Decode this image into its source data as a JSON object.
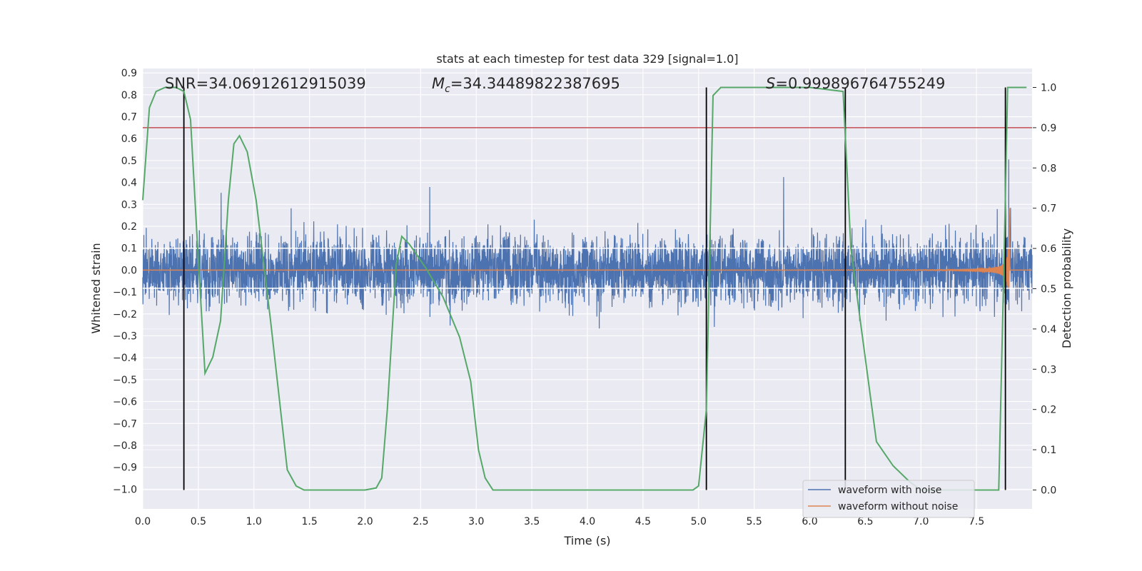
{
  "chart_data": {
    "type": "line",
    "title": "stats at each timestep for test data 329 [signal=1.0]",
    "xlabel": "Time (s)",
    "ylabel": "Whitened strain",
    "y2label": "Detection probability",
    "xlim": [
      0.0,
      8.0
    ],
    "ylim": [
      -1.09,
      0.92
    ],
    "y2lim": [
      -0.047,
      1.047
    ],
    "grid": true,
    "x_ticks": [
      "0.0",
      "0.5",
      "1.0",
      "1.5",
      "2.0",
      "2.5",
      "3.0",
      "3.5",
      "4.0",
      "4.5",
      "5.0",
      "5.5",
      "6.0",
      "6.5",
      "7.0",
      "7.5"
    ],
    "y_ticks": [
      "0.9",
      "0.8",
      "0.7",
      "0.6",
      "0.5",
      "0.4",
      "0.3",
      "0.2",
      "0.1",
      "0.0",
      "−0.1",
      "−0.2",
      "−0.3",
      "−0.4",
      "−0.5",
      "−0.6",
      "−0.7",
      "−0.8",
      "−0.9",
      "−1.0"
    ],
    "y2_ticks": [
      "1.0",
      "0.9",
      "0.8",
      "0.7",
      "0.6",
      "0.5",
      "0.4",
      "0.3",
      "0.2",
      "0.1",
      "0.0"
    ],
    "annotations": {
      "snr": "SNR=34.06912612915039",
      "mc_symbol": "M",
      "mc_sub": "c",
      "mc_value": "=34.34489822387695",
      "s_symbol": "S",
      "s_value": "=0.999896764755249"
    },
    "threshold": 0.9,
    "vertical_lines_x": [
      0.37,
      5.07,
      6.32,
      7.76
    ],
    "noise_band": {
      "upper": 0.1,
      "lower": -0.083
    },
    "series": [
      {
        "name": "waveform with noise",
        "color": "#4c72b0"
      },
      {
        "name": "waveform without noise",
        "color": "#dd8452"
      },
      {
        "color": "#55a868",
        "x": [
          0.0,
          0.06,
          0.12,
          0.2,
          0.3,
          0.37,
          0.43,
          0.49,
          0.56,
          0.63,
          0.7,
          0.77,
          0.82,
          0.87,
          0.94,
          1.02,
          1.15,
          1.3,
          1.38,
          1.45,
          1.6,
          2.0,
          2.1,
          2.15,
          2.2,
          2.28,
          2.33,
          2.4,
          2.55,
          2.7,
          2.85,
          2.95,
          3.02,
          3.08,
          3.15,
          3.5,
          4.5,
          4.95,
          5.0,
          5.07,
          5.13,
          5.2,
          5.3,
          5.5,
          6.0,
          6.3,
          6.37,
          6.45,
          6.6,
          6.75,
          6.9,
          7.0,
          7.3,
          7.6,
          7.7,
          7.75,
          7.78,
          7.8,
          7.85,
          7.95
        ],
        "y": [
          0.72,
          0.95,
          0.99,
          1.0,
          1.0,
          0.99,
          0.92,
          0.62,
          0.29,
          0.33,
          0.42,
          0.72,
          0.86,
          0.88,
          0.84,
          0.72,
          0.42,
          0.05,
          0.01,
          0.0,
          0.0,
          0.0,
          0.005,
          0.03,
          0.2,
          0.56,
          0.63,
          0.61,
          0.55,
          0.48,
          0.38,
          0.27,
          0.1,
          0.03,
          0.0,
          0.0,
          0.0,
          0.0,
          0.01,
          0.2,
          0.98,
          1.0,
          1.0,
          1.0,
          1.0,
          0.99,
          0.6,
          0.43,
          0.12,
          0.06,
          0.02,
          0.0,
          0.0,
          0.0,
          0.0,
          0.6,
          1.0,
          1.0,
          1.0,
          1.0
        ]
      }
    ]
  }
}
